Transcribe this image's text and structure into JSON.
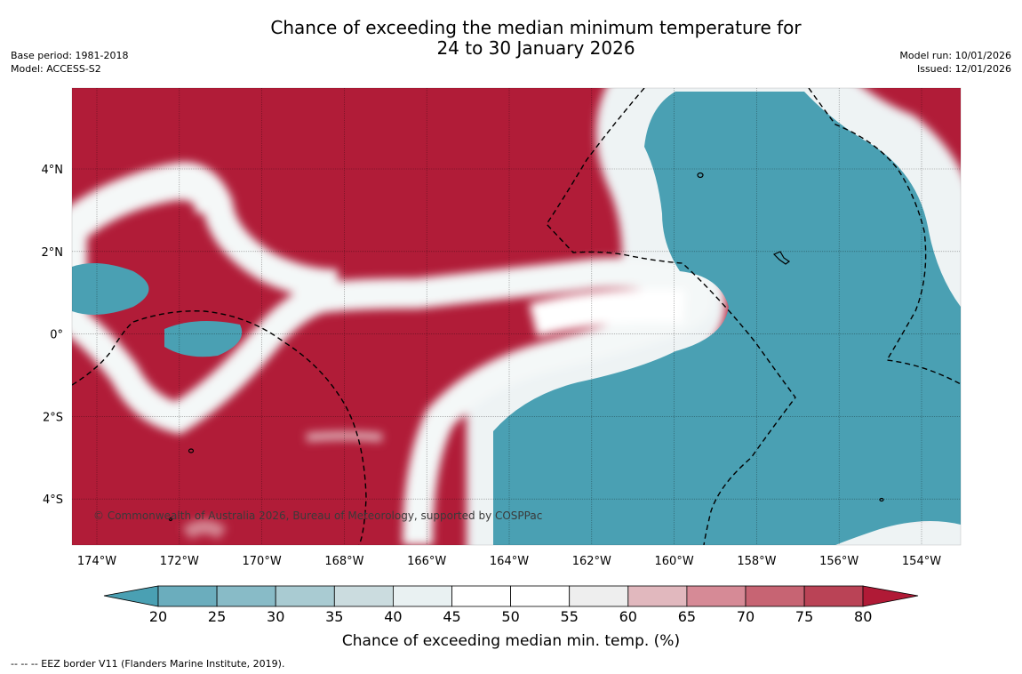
{
  "title": {
    "line1": "Chance of exceeding the median minimum temperature for",
    "line2": "24 to 30 January 2026"
  },
  "meta": {
    "base_period": "Base period: 1981-2018",
    "model": "Model: ACCESS-S2",
    "model_run": "Model run: 10/01/2026",
    "issued": "Issued: 12/01/2026"
  },
  "map": {
    "x_ticks": [
      "174°W",
      "172°W",
      "170°W",
      "168°W",
      "166°W",
      "164°W",
      "162°W",
      "160°W",
      "158°W",
      "156°W",
      "154°W"
    ],
    "y_ticks": [
      "4°N",
      "2°N",
      "0°",
      "2°S",
      "4°S"
    ],
    "credit": "© Commonwealth of Australia 2026, Bureau of Meteorology, supported by COSPPac",
    "colors": {
      "hot": "#b11c38",
      "cold": "#4aa0b3",
      "neutral": "#ffffff"
    }
  },
  "colorbar": {
    "ticks": [
      "20",
      "25",
      "30",
      "35",
      "40",
      "45",
      "50",
      "55",
      "60",
      "65",
      "70",
      "75",
      "80"
    ],
    "colors": [
      "#6badbd",
      "#88bbc7",
      "#a9cbd2",
      "#cbdcdf",
      "#e9f1f2",
      "#ffffff",
      "#ffffff",
      "#eeeeee",
      "#e1b8be",
      "#d68a96",
      "#c76473",
      "#ba4356"
    ],
    "under_color": "#4aa0b3",
    "over_color": "#b01a36",
    "title": "Chance of exceeding median min. temp. (%)"
  },
  "footnote": "--  --  -- EEZ border V11 (Flanders Marine Institute, 2019)."
}
